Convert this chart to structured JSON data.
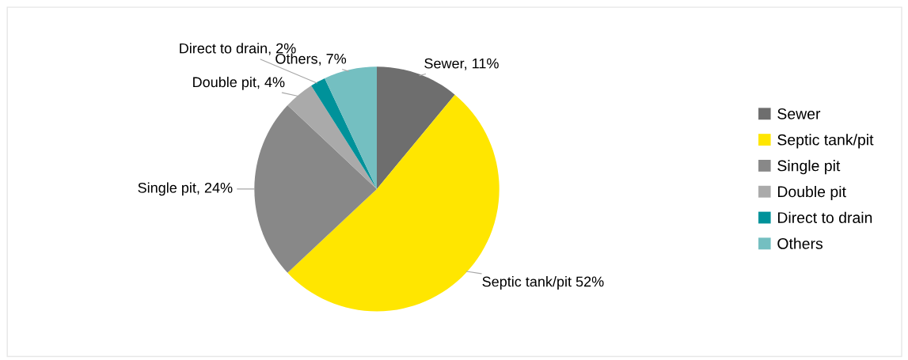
{
  "chart_data": {
    "type": "pie",
    "categories": [
      "Sewer",
      "Septic tank/pit",
      "Single pit",
      "Double pit",
      "Direct to drain",
      "Others"
    ],
    "values": [
      11,
      52,
      24,
      4,
      2,
      7
    ],
    "colors": [
      "#6e6e6e",
      "#ffe600",
      "#888888",
      "#aaaaaa",
      "#00929a",
      "#74bfc1"
    ],
    "value_labels": [
      "Sewer, 11%",
      "Septic tank/pit 52%",
      "Single pit, 24%",
      "Double pit, 4%",
      "Direct to drain, 2%",
      "Others, 7%"
    ],
    "legend": "right"
  }
}
